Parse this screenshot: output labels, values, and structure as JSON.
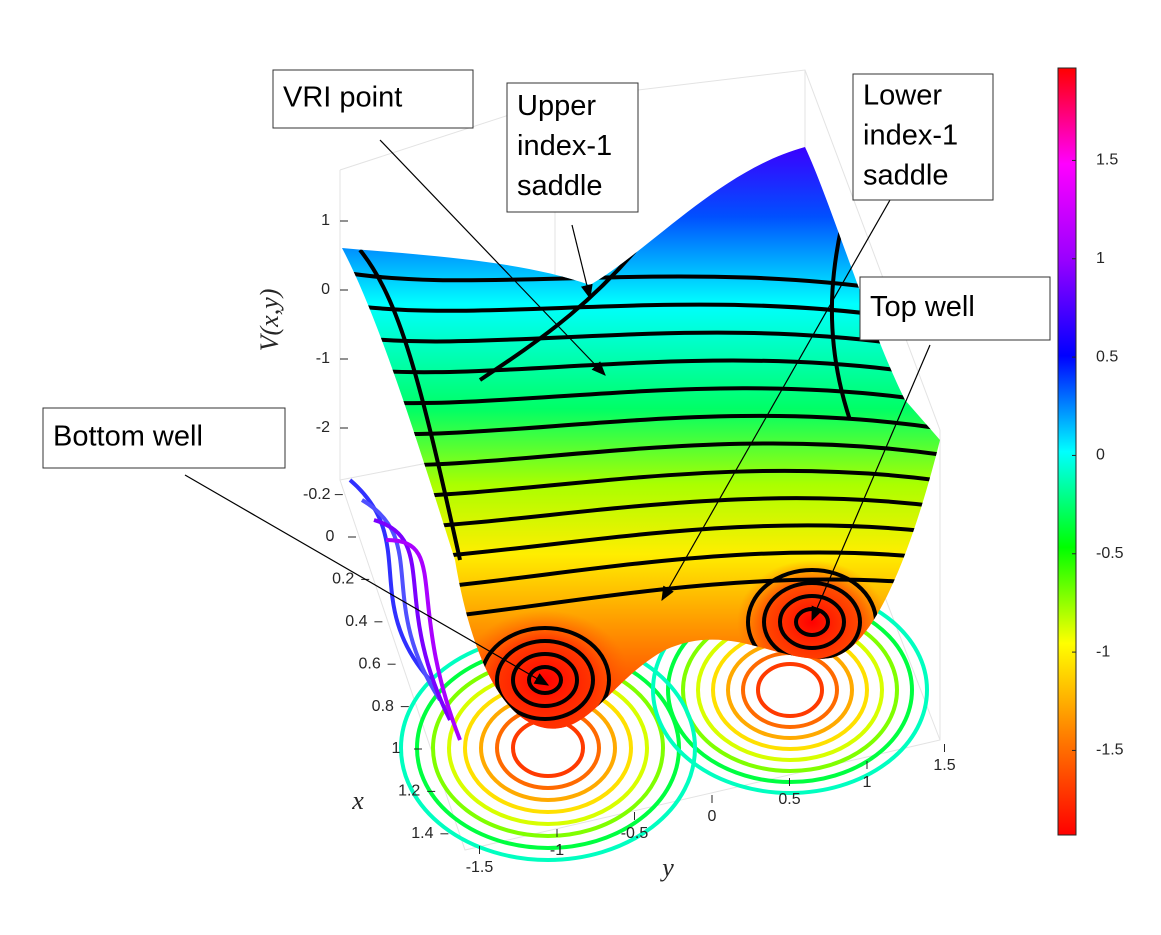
{
  "chart_data": {
    "type": "surface",
    "xlabel": "x",
    "ylabel": "y",
    "zlabel": "V(x,y)",
    "xlim": [
      -0.3,
      1.5
    ],
    "ylim": [
      -1.5,
      1.5
    ],
    "zlim": [
      -2.6,
      1.7
    ],
    "xticks": [
      -0.2,
      0,
      0.2,
      0.4,
      0.6,
      0.8,
      1,
      1.2,
      1.4
    ],
    "yticks": [
      -1.5,
      -1,
      -0.5,
      0,
      0.5,
      1,
      1.5
    ],
    "zticks": [
      -2,
      -1,
      0,
      1
    ],
    "grid": true,
    "colorbar": {
      "lim": [
        -1.93,
        1.97
      ],
      "ticks": [
        -1.5,
        -1,
        -0.5,
        0,
        0.5,
        1,
        1.5
      ],
      "colormap": [
        "#ff0000",
        "#ff7a00",
        "#ffff00",
        "#00ff00",
        "#00ffff",
        "#0000ff",
        "#9900ff",
        "#ff00ff",
        "#ff0000"
      ]
    },
    "annotations": [
      {
        "lines": [
          "VRI point"
        ]
      },
      {
        "lines": [
          "Upper",
          "index-1",
          "saddle"
        ]
      },
      {
        "lines": [
          "Lower",
          "index-1",
          "saddle"
        ]
      },
      {
        "lines": [
          "Top well"
        ]
      },
      {
        "lines": [
          "Bottom well"
        ]
      }
    ]
  }
}
